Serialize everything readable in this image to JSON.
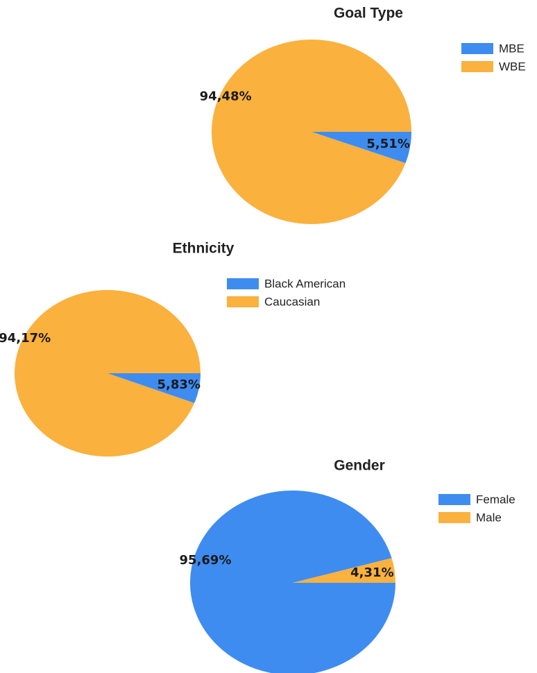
{
  "chart_data": [
    {
      "type": "pie",
      "title": "Goal Type",
      "categories": [
        "MBE",
        "WBE"
      ],
      "values": [
        5.51,
        94.48
      ],
      "value_labels": [
        "5,51%",
        "94,48%"
      ],
      "colors": [
        "#3f8cf0",
        "#fab13e"
      ]
    },
    {
      "type": "pie",
      "title": "Ethnicity",
      "categories": [
        "Black American",
        "Caucasian"
      ],
      "values": [
        5.83,
        94.17
      ],
      "value_labels": [
        "5,83%",
        "94,17%"
      ],
      "colors": [
        "#3f8cf0",
        "#fab13e"
      ]
    },
    {
      "type": "pie",
      "title": "Gender",
      "categories": [
        "Female",
        "Male"
      ],
      "values": [
        95.69,
        4.31
      ],
      "value_labels": [
        "95,69%",
        "4,31%"
      ],
      "colors": [
        "#3f8cf0",
        "#fab13e"
      ]
    }
  ]
}
